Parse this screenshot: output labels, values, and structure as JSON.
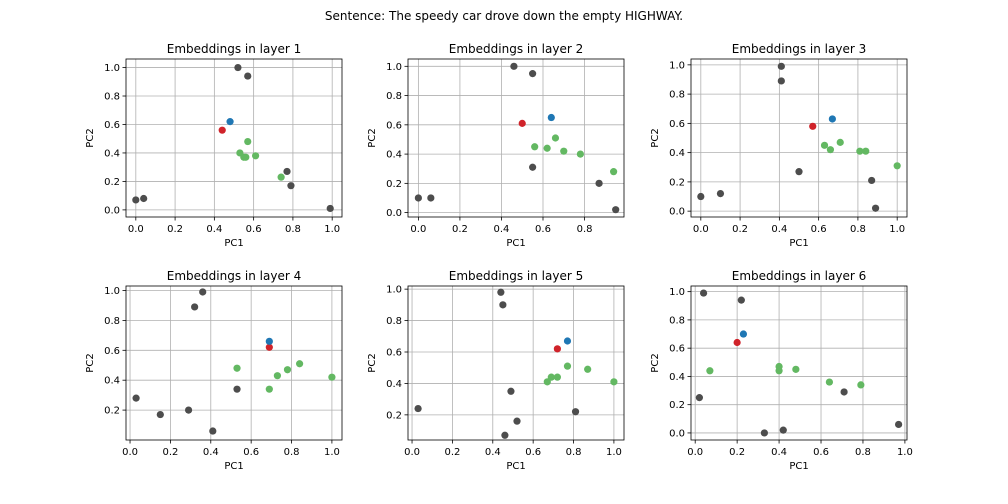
{
  "suptitle": "Sentence: The speedy car drove down the empty HIGHWAY.",
  "colors": {
    "gray": "#4d4d4d",
    "green": "#63b862",
    "red": "#d0232a",
    "blue": "#1f77b4"
  },
  "chart_data": [
    {
      "type": "scatter",
      "title": "Embeddings in layer 1",
      "xlabel": "PC1",
      "ylabel": "PC2",
      "xlim": [
        -0.05,
        1.05
      ],
      "ylim": [
        -0.05,
        1.06
      ],
      "grid": true,
      "xticks": [
        0.0,
        0.2,
        0.4,
        0.6,
        0.8,
        1.0
      ],
      "xtick_labels": [
        "0.0",
        "0.2",
        "0.4",
        "0.6",
        "0.8",
        "1.0"
      ],
      "yticks": [
        0.0,
        0.2,
        0.4,
        0.6,
        0.8,
        1.0
      ],
      "ytick_labels": [
        "0.0",
        "0.2",
        "0.4",
        "0.6",
        "0.8",
        "1.0"
      ],
      "series": [
        {
          "color": "gray",
          "x": [
            0.0,
            0.04,
            0.52,
            0.57,
            0.77,
            0.79,
            0.99
          ],
          "y": [
            0.07,
            0.08,
            1.0,
            0.94,
            0.27,
            0.17,
            0.01
          ]
        },
        {
          "color": "green",
          "x": [
            0.53,
            0.55,
            0.56,
            0.57,
            0.61,
            0.74
          ],
          "y": [
            0.4,
            0.37,
            0.37,
            0.48,
            0.38,
            0.23
          ]
        },
        {
          "color": "red",
          "x": [
            0.44
          ],
          "y": [
            0.56
          ]
        },
        {
          "color": "blue",
          "x": [
            0.48
          ],
          "y": [
            0.62
          ]
        }
      ]
    },
    {
      "type": "scatter",
      "title": "Embeddings in layer 2",
      "xlabel": "PC1",
      "ylabel": "PC2",
      "xlim": [
        -0.05,
        0.99
      ],
      "ylim": [
        -0.03,
        1.05
      ],
      "grid": true,
      "xticks": [
        0.0,
        0.2,
        0.4,
        0.6,
        0.8
      ],
      "xtick_labels": [
        "0.0",
        "0.2",
        "0.4",
        "0.6",
        "0.8"
      ],
      "yticks": [
        0.0,
        0.2,
        0.4,
        0.6,
        0.8,
        1.0
      ],
      "ytick_labels": [
        "0.0",
        "0.2",
        "0.4",
        "0.6",
        "0.8",
        "1.0"
      ],
      "series": [
        {
          "color": "gray",
          "x": [
            0.0,
            0.06,
            0.46,
            0.55,
            0.55,
            0.87,
            0.95
          ],
          "y": [
            0.1,
            0.1,
            1.0,
            0.95,
            0.31,
            0.2,
            0.02
          ]
        },
        {
          "color": "green",
          "x": [
            0.56,
            0.62,
            0.66,
            0.7,
            0.78,
            0.94
          ],
          "y": [
            0.45,
            0.44,
            0.51,
            0.42,
            0.4,
            0.28
          ]
        },
        {
          "color": "red",
          "x": [
            0.5
          ],
          "y": [
            0.61
          ]
        },
        {
          "color": "blue",
          "x": [
            0.64
          ],
          "y": [
            0.65
          ]
        }
      ]
    },
    {
      "type": "scatter",
      "title": "Embeddings in layer 3",
      "xlabel": "PC1",
      "ylabel": "PC2",
      "xlim": [
        -0.05,
        1.05
      ],
      "ylim": [
        -0.04,
        1.04
      ],
      "grid": true,
      "xticks": [
        0.0,
        0.2,
        0.4,
        0.6,
        0.8,
        1.0
      ],
      "xtick_labels": [
        "0.0",
        "0.2",
        "0.4",
        "0.6",
        "0.8",
        "1.0"
      ],
      "yticks": [
        0.0,
        0.2,
        0.4,
        0.6,
        0.8,
        1.0
      ],
      "ytick_labels": [
        "0.0",
        "0.2",
        "0.4",
        "0.6",
        "0.8",
        "1.0"
      ],
      "series": [
        {
          "color": "gray",
          "x": [
            0.0,
            0.1,
            0.41,
            0.41,
            0.5,
            0.87,
            0.89
          ],
          "y": [
            0.1,
            0.12,
            0.99,
            0.89,
            0.27,
            0.21,
            0.02
          ]
        },
        {
          "color": "green",
          "x": [
            0.63,
            0.66,
            0.71,
            0.81,
            0.84,
            1.0
          ],
          "y": [
            0.45,
            0.42,
            0.47,
            0.41,
            0.41,
            0.31
          ]
        },
        {
          "color": "red",
          "x": [
            0.57
          ],
          "y": [
            0.58
          ]
        },
        {
          "color": "blue",
          "x": [
            0.67
          ],
          "y": [
            0.63
          ]
        }
      ]
    },
    {
      "type": "scatter",
      "title": "Embeddings in layer 4",
      "xlabel": "PC1",
      "ylabel": "PC2",
      "xlim": [
        -0.02,
        1.05
      ],
      "ylim": [
        0.0,
        1.03
      ],
      "grid": true,
      "xticks": [
        0.0,
        0.2,
        0.4,
        0.6,
        0.8,
        1.0
      ],
      "xtick_labels": [
        "0.0",
        "0.2",
        "0.4",
        "0.6",
        "0.8",
        "1.0"
      ],
      "yticks": [
        0.2,
        0.4,
        0.6,
        0.8,
        1.0
      ],
      "ytick_labels": [
        "0.2",
        "0.4",
        "0.6",
        "0.8",
        "1.0"
      ],
      "series": [
        {
          "color": "gray",
          "x": [
            0.03,
            0.15,
            0.29,
            0.32,
            0.36,
            0.41,
            0.53
          ],
          "y": [
            0.28,
            0.17,
            0.2,
            0.89,
            0.99,
            0.06,
            0.34
          ]
        },
        {
          "color": "green",
          "x": [
            0.53,
            0.69,
            0.73,
            0.78,
            0.84,
            1.0
          ],
          "y": [
            0.48,
            0.34,
            0.43,
            0.47,
            0.51,
            0.42
          ]
        },
        {
          "color": "red",
          "x": [
            0.69
          ],
          "y": [
            0.62
          ]
        },
        {
          "color": "blue",
          "x": [
            0.69
          ],
          "y": [
            0.66
          ]
        }
      ]
    },
    {
      "type": "scatter",
      "title": "Embeddings in layer 5",
      "xlabel": "PC1",
      "ylabel": "PC2",
      "xlim": [
        -0.02,
        1.05
      ],
      "ylim": [
        0.04,
        1.02
      ],
      "grid": true,
      "xticks": [
        0.0,
        0.2,
        0.4,
        0.6,
        0.8,
        1.0
      ],
      "xtick_labels": [
        "0.0",
        "0.2",
        "0.4",
        "0.6",
        "0.8",
        "1.0"
      ],
      "yticks": [
        0.2,
        0.4,
        0.6,
        0.8,
        1.0
      ],
      "ytick_labels": [
        "0.2",
        "0.4",
        "0.6",
        "0.8",
        "1.0"
      ],
      "series": [
        {
          "color": "gray",
          "x": [
            0.03,
            0.44,
            0.45,
            0.46,
            0.49,
            0.52,
            0.81
          ],
          "y": [
            0.24,
            0.98,
            0.9,
            0.07,
            0.35,
            0.16,
            0.22
          ]
        },
        {
          "color": "green",
          "x": [
            0.67,
            0.69,
            0.72,
            0.77,
            0.87,
            1.0
          ],
          "y": [
            0.41,
            0.44,
            0.44,
            0.51,
            0.49,
            0.41
          ]
        },
        {
          "color": "red",
          "x": [
            0.72
          ],
          "y": [
            0.62
          ]
        },
        {
          "color": "blue",
          "x": [
            0.77
          ],
          "y": [
            0.67
          ]
        }
      ]
    },
    {
      "type": "scatter",
      "title": "Embeddings in layer 6",
      "xlabel": "PC1",
      "ylabel": "PC2",
      "xlim": [
        -0.02,
        1.01
      ],
      "ylim": [
        -0.05,
        1.04
      ],
      "grid": true,
      "xticks": [
        0.0,
        0.2,
        0.4,
        0.6,
        0.8,
        1.0
      ],
      "xtick_labels": [
        "0.0",
        "0.2",
        "0.4",
        "0.6",
        "0.8",
        "1.0"
      ],
      "yticks": [
        0.0,
        0.2,
        0.4,
        0.6,
        0.8,
        1.0
      ],
      "ytick_labels": [
        "0.0",
        "0.2",
        "0.4",
        "0.6",
        "0.8",
        "1.0"
      ],
      "series": [
        {
          "color": "gray",
          "x": [
            0.02,
            0.04,
            0.22,
            0.33,
            0.42,
            0.71,
            0.97
          ],
          "y": [
            0.25,
            0.99,
            0.94,
            0.0,
            0.02,
            0.29,
            0.06
          ]
        },
        {
          "color": "green",
          "x": [
            0.07,
            0.4,
            0.4,
            0.48,
            0.64,
            0.79
          ],
          "y": [
            0.44,
            0.47,
            0.44,
            0.45,
            0.36,
            0.34
          ]
        },
        {
          "color": "red",
          "x": [
            0.2
          ],
          "y": [
            0.64
          ]
        },
        {
          "color": "blue",
          "x": [
            0.23
          ],
          "y": [
            0.7
          ]
        }
      ]
    }
  ]
}
